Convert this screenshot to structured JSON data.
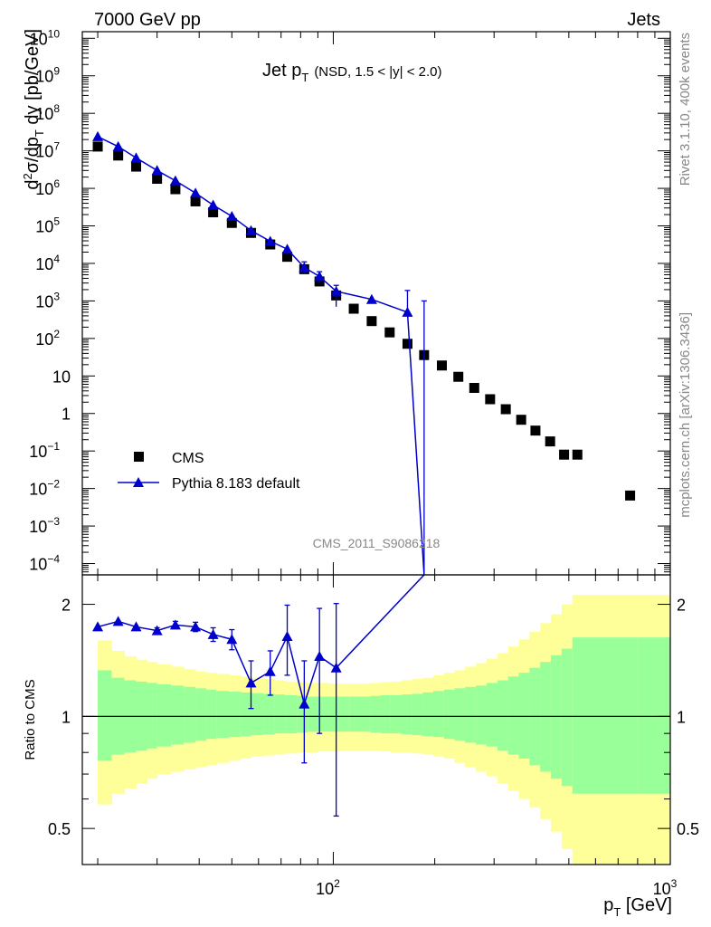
{
  "header": {
    "left": "7000 GeV pp",
    "right": "Jets"
  },
  "side_labels": {
    "rivet": "Rivet 3.1.10,  400k events",
    "mcplots": "mcplots.cern.ch [arXiv:1306.3436]"
  },
  "chart_data": [
    {
      "type": "scatter",
      "title_main": "Jet p",
      "title_sub": "T",
      "title_cut": "(NSD, 1.5 < |y| < 2.0)",
      "watermark": "CMS_2011_S9086218",
      "ylabel": "d²σ/dp_T dy [pb/GeV]",
      "yscale": "log",
      "ylim": [
        5e-05,
        15000000000.0
      ],
      "xscale": "log",
      "xlim": [
        18,
        1000
      ],
      "legend": {
        "position": "lower-left",
        "entries": [
          "CMS",
          "Pythia 8.183 default"
        ]
      },
      "ytick_labels": [
        {
          "v": 10000000000.0,
          "label": "10",
          "exp": "10"
        },
        {
          "v": 1000000000.0,
          "label": "10",
          "exp": "9"
        },
        {
          "v": 100000000.0,
          "label": "10",
          "exp": "8"
        },
        {
          "v": 10000000.0,
          "label": "10",
          "exp": "7"
        },
        {
          "v": 1000000.0,
          "label": "10",
          "exp": "6"
        },
        {
          "v": 100000.0,
          "label": "10",
          "exp": "5"
        },
        {
          "v": 10000.0,
          "label": "10",
          "exp": "4"
        },
        {
          "v": 1000.0,
          "label": "10",
          "exp": "3"
        },
        {
          "v": 100.0,
          "label": "10",
          "exp": "2"
        },
        {
          "v": 10,
          "label": "10",
          "exp": ""
        },
        {
          "v": 1,
          "label": "1",
          "exp": ""
        },
        {
          "v": 0.1,
          "label": "10",
          "exp": "−1"
        },
        {
          "v": 0.01,
          "label": "10",
          "exp": "−2"
        },
        {
          "v": 0.001,
          "label": "10",
          "exp": "−3"
        },
        {
          "v": 0.0001,
          "label": "10",
          "exp": "−4"
        }
      ],
      "series": [
        {
          "name": "CMS",
          "marker": "square",
          "color": "#000000",
          "x": [
            20,
            23,
            26,
            30,
            34,
            39,
            44,
            50,
            57,
            65,
            73,
            82,
            91,
            102,
            115,
            130,
            147,
            166,
            186,
            210,
            235,
            262,
            292,
            325,
            361,
            398,
            440,
            484,
            530,
            760
          ],
          "y": [
            13000000.0,
            7500000.0,
            3800000.0,
            1800000.0,
            950000.0,
            450000.0,
            230000.0,
            120000.0,
            65000.0,
            32000.0,
            15000.0,
            7000.0,
            3300.0,
            1400.0,
            620,
            290,
            145,
            72,
            36,
            19,
            9.5,
            4.8,
            2.4,
            1.3,
            0.68,
            0.35,
            0.18,
            0.08,
            0.007,
            0.0065
          ]
        },
        {
          "name": "Pythia 8.183 default",
          "marker": "triangle",
          "color": "#0000cc",
          "x": [
            20,
            23,
            26,
            30,
            34,
            39,
            44,
            50,
            57,
            65,
            73,
            82,
            91,
            102,
            115,
            130,
            166,
            186
          ],
          "y": [
            24000000.0,
            13000000.0,
            6500000.0,
            3000000.0,
            1600000.0,
            750000.0,
            360000.0,
            180000.0,
            75000.0,
            39000.0,
            24000.0,
            7800.0,
            4500.0,
            1800.0,
            1100.0,
            500,
            1100.0,
            500
          ],
          "yerr_low": [
            0,
            0,
            0,
            0,
            0,
            0,
            0,
            0,
            0,
            0,
            0,
            0,
            0,
            0,
            0,
            0,
            0,
            0
          ],
          "yerr_high": [
            0,
            0,
            0,
            0,
            0,
            0,
            0,
            0,
            0,
            0,
            0,
            0,
            0,
            0,
            0,
            0,
            0,
            0
          ]
        }
      ]
    },
    {
      "type": "line",
      "ylabel": "Ratio to CMS",
      "xlabel": "p_T [GeV]",
      "ylim": [
        0.4,
        2.4
      ],
      "xscale": "log",
      "xlim": [
        18,
        1000
      ],
      "ytick_labels": [
        {
          "v": 0.5,
          "label": "0.5"
        },
        {
          "v": 1,
          "label": "1"
        },
        {
          "v": 2,
          "label": "2"
        }
      ],
      "xtick_labels": [
        {
          "v": 100,
          "label": "10",
          "exp": "2"
        },
        {
          "v": 1000,
          "label": "10",
          "exp": "3"
        }
      ],
      "bands": {
        "edges": [
          20,
          22,
          24,
          26,
          28,
          30,
          33,
          36,
          39,
          42,
          45,
          49,
          53,
          57,
          62,
          67,
          72,
          78,
          84,
          90,
          97,
          104,
          112,
          120,
          129,
          138,
          148,
          159,
          171,
          184,
          198,
          213,
          229,
          246,
          265,
          285,
          307,
          330,
          355,
          382,
          411,
          442,
          476,
          512,
          800,
          1000
        ],
        "green_lo": [
          0.76,
          0.79,
          0.8,
          0.81,
          0.82,
          0.83,
          0.84,
          0.85,
          0.86,
          0.87,
          0.875,
          0.88,
          0.885,
          0.89,
          0.895,
          0.9,
          0.9,
          0.905,
          0.91,
          0.91,
          0.91,
          0.91,
          0.91,
          0.91,
          0.905,
          0.9,
          0.9,
          0.895,
          0.89,
          0.885,
          0.88,
          0.87,
          0.86,
          0.85,
          0.84,
          0.83,
          0.81,
          0.79,
          0.77,
          0.74,
          0.71,
          0.68,
          0.65,
          0.62,
          0.62
        ],
        "green_hi": [
          1.33,
          1.27,
          1.25,
          1.24,
          1.23,
          1.22,
          1.21,
          1.2,
          1.19,
          1.18,
          1.17,
          1.165,
          1.16,
          1.155,
          1.15,
          1.145,
          1.14,
          1.135,
          1.13,
          1.13,
          1.13,
          1.13,
          1.13,
          1.13,
          1.135,
          1.14,
          1.14,
          1.145,
          1.15,
          1.16,
          1.17,
          1.18,
          1.19,
          1.2,
          1.21,
          1.23,
          1.25,
          1.28,
          1.31,
          1.35,
          1.4,
          1.46,
          1.52,
          1.63,
          1.63
        ],
        "yellow_lo": [
          0.58,
          0.62,
          0.64,
          0.66,
          0.68,
          0.7,
          0.71,
          0.72,
          0.73,
          0.74,
          0.75,
          0.76,
          0.77,
          0.78,
          0.785,
          0.79,
          0.795,
          0.8,
          0.8,
          0.805,
          0.805,
          0.81,
          0.81,
          0.81,
          0.81,
          0.805,
          0.8,
          0.8,
          0.795,
          0.79,
          0.78,
          0.77,
          0.75,
          0.73,
          0.71,
          0.69,
          0.66,
          0.63,
          0.6,
          0.57,
          0.53,
          0.49,
          0.44,
          0.4,
          0.4
        ],
        "yellow_hi": [
          1.6,
          1.5,
          1.45,
          1.42,
          1.4,
          1.38,
          1.36,
          1.34,
          1.32,
          1.31,
          1.3,
          1.29,
          1.28,
          1.27,
          1.26,
          1.25,
          1.24,
          1.235,
          1.23,
          1.23,
          1.225,
          1.225,
          1.225,
          1.225,
          1.23,
          1.235,
          1.24,
          1.25,
          1.26,
          1.27,
          1.29,
          1.31,
          1.33,
          1.36,
          1.39,
          1.43,
          1.48,
          1.54,
          1.61,
          1.69,
          1.78,
          1.88,
          2.0,
          2.12,
          2.12
        ]
      },
      "series": [
        {
          "name": "Pythia 8.183 default",
          "color": "#0000cc",
          "x": [
            20,
            23,
            26,
            30,
            34,
            39,
            44,
            50,
            57,
            65,
            73,
            82,
            91,
            102,
            186
          ],
          "y": [
            1.74,
            1.8,
            1.74,
            1.7,
            1.76,
            1.74,
            1.66,
            1.61,
            1.23,
            1.32,
            1.64,
            1.08,
            1.45,
            1.35,
            3.2
          ],
          "err_lo": [
            0.02,
            0.02,
            0.02,
            0.03,
            0.04,
            0.05,
            0.07,
            0.1,
            0.18,
            0.18,
            0.35,
            0.33,
            0.55,
            0.81,
            0
          ],
          "err_hi": [
            0.02,
            0.02,
            0.02,
            0.03,
            0.04,
            0.05,
            0.07,
            0.1,
            0.18,
            0.18,
            0.35,
            0.33,
            0.5,
            0.66,
            0
          ]
        }
      ]
    }
  ]
}
